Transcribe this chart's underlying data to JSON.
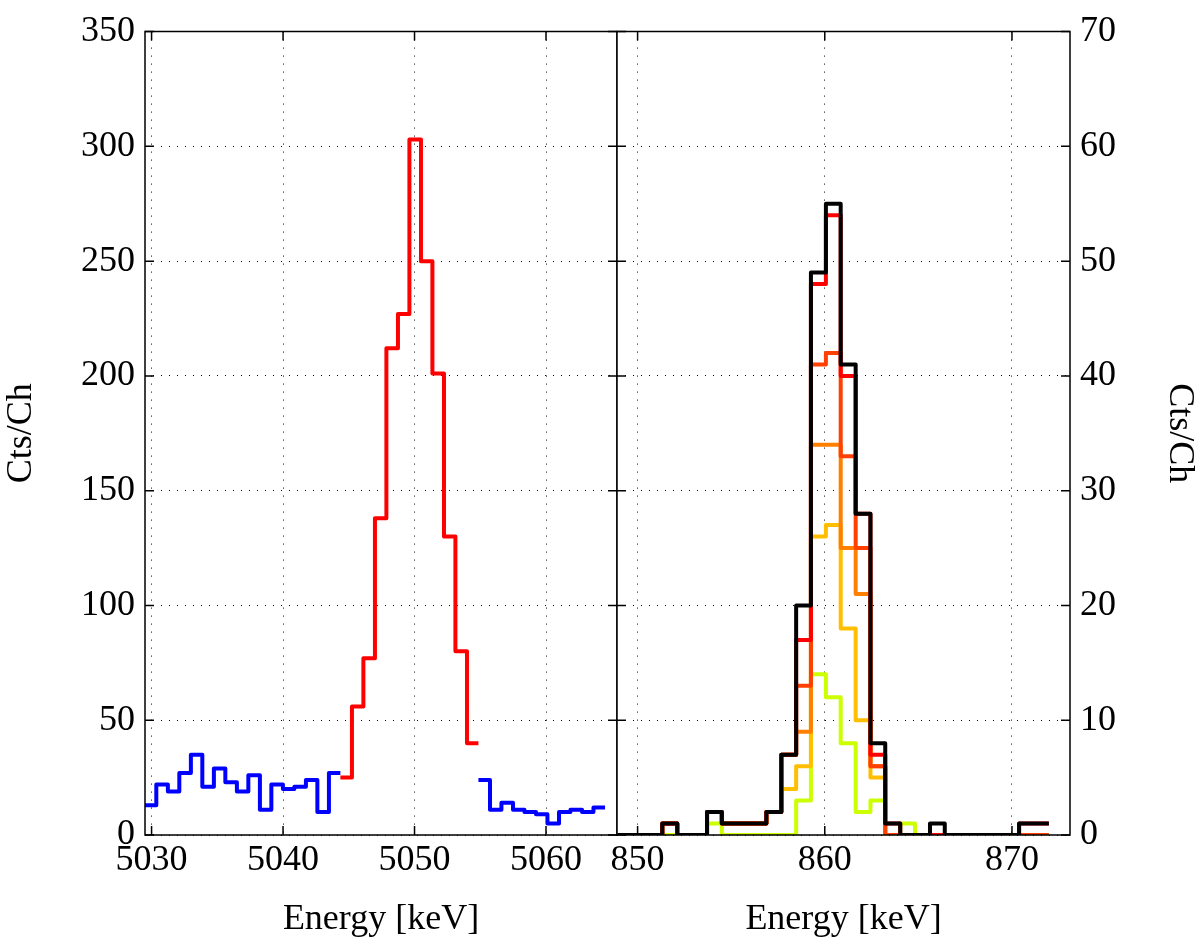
{
  "chart_data": [
    {
      "type": "step",
      "xlabel": "Energy [keV]",
      "ylabel": "Cts/Ch",
      "xlim": [
        5029.5,
        5065.4
      ],
      "xticks": [
        5030,
        5040,
        5050,
        5060
      ],
      "ylim": [
        0,
        350
      ],
      "yticks": [
        0,
        50,
        100,
        150,
        200,
        250,
        300,
        350
      ],
      "grid": true,
      "series": [
        {
          "color": "#0000ff",
          "x": [
            5029.5,
            5030.36,
            5031.24,
            5032.11,
            5032.99,
            5033.86,
            5034.74,
            5035.61,
            5036.49,
            5037.36,
            5038.24,
            5039.11,
            5039.99,
            5040.86,
            5041.74,
            5042.61,
            5043.49,
            5044.36
          ],
          "values": [
            13,
            22,
            19,
            27,
            35,
            21,
            29,
            23,
            19,
            26,
            11,
            22,
            20,
            21,
            24,
            10,
            27,
            27
          ]
        },
        {
          "color": "#ff0000",
          "x": [
            5044.36,
            5045.24,
            5046.11,
            5046.99,
            5047.86,
            5048.74,
            5049.61,
            5050.49,
            5051.36,
            5052.24,
            5053.11,
            5053.99,
            5054.86
          ],
          "values": [
            25,
            56,
            77,
            138,
            212,
            227,
            303,
            250,
            201,
            130,
            80,
            40,
            40
          ]
        },
        {
          "color": "#0000ff",
          "x": [
            5054.86,
            5055.74,
            5056.61,
            5057.49,
            5058.36,
            5059.24,
            5060.11,
            5060.99,
            5061.86,
            5062.74,
            5063.61,
            5064.49
          ],
          "values": [
            24,
            11,
            14,
            11,
            10,
            9,
            5,
            10,
            11,
            10,
            12,
            12
          ]
        }
      ]
    },
    {
      "type": "histogram",
      "xlabel": "Energy [keV]",
      "y2label": "Cts/Ch",
      "xlim": [
        848.9,
        873.1
      ],
      "xticks": [
        850,
        860,
        870
      ],
      "y2lim": [
        0,
        70
      ],
      "y2ticks": [
        0,
        10,
        20,
        30,
        40,
        50,
        60,
        70
      ],
      "grid": true,
      "bins": [
        848.94,
        849.73,
        850.53,
        851.32,
        852.12,
        852.91,
        853.71,
        854.5,
        855.29,
        856.09,
        856.88,
        857.68,
        858.47,
        859.26,
        860.06,
        860.85,
        861.65,
        862.44,
        863.23,
        864.03,
        864.82,
        865.62,
        866.41,
        867.21,
        868.0,
        868.79,
        869.59,
        870.38,
        871.18,
        871.97
      ],
      "series": [
        {
          "axis": "y2",
          "color": "#000000",
          "values": [
            0,
            0,
            0,
            1,
            0,
            0,
            2,
            1,
            1,
            1,
            2,
            7,
            20,
            49,
            55,
            41,
            28,
            8,
            1,
            0,
            0,
            1,
            0,
            0,
            0,
            0,
            0,
            1,
            1
          ]
        },
        {
          "axis": "y2",
          "color": "#ff0000",
          "values": [
            0,
            0,
            0,
            1,
            0,
            0,
            2,
            1,
            1,
            1,
            2,
            7,
            17,
            48,
            54,
            40,
            28,
            7,
            1,
            0,
            0,
            0,
            0,
            0,
            0,
            0,
            0,
            1,
            1
          ]
        },
        {
          "axis": "y2",
          "color": "#ff4000",
          "values": [
            0,
            0,
            0,
            1,
            0,
            0,
            2,
            1,
            1,
            1,
            2,
            7,
            13,
            41,
            42,
            33,
            25,
            6,
            0,
            0,
            0,
            0,
            0,
            0,
            0,
            0,
            0,
            0,
            0
          ]
        },
        {
          "axis": "y2",
          "color": "#ff8000",
          "values": [
            0,
            0,
            0,
            1,
            0,
            0,
            2,
            1,
            1,
            1,
            2,
            7,
            9,
            34,
            34,
            25,
            21,
            6,
            0,
            0,
            0,
            0,
            0,
            0,
            0,
            0,
            0,
            0,
            0
          ]
        },
        {
          "axis": "y2",
          "color": "#ffbf00",
          "values": [
            0,
            0,
            0,
            1,
            0,
            0,
            2,
            1,
            1,
            1,
            2,
            4,
            6,
            26,
            27,
            18,
            10,
            5,
            0,
            0,
            0,
            0,
            0,
            0,
            0,
            0,
            0,
            0,
            0
          ]
        },
        {
          "axis": "y2",
          "color": "#ccff00",
          "values": [
            0,
            0,
            0,
            0,
            0,
            0,
            1,
            0,
            0,
            0,
            0,
            0,
            3,
            14,
            12,
            8,
            2,
            3,
            0,
            1,
            0,
            0,
            0,
            0,
            0,
            0,
            0,
            0,
            0
          ]
        }
      ]
    }
  ]
}
